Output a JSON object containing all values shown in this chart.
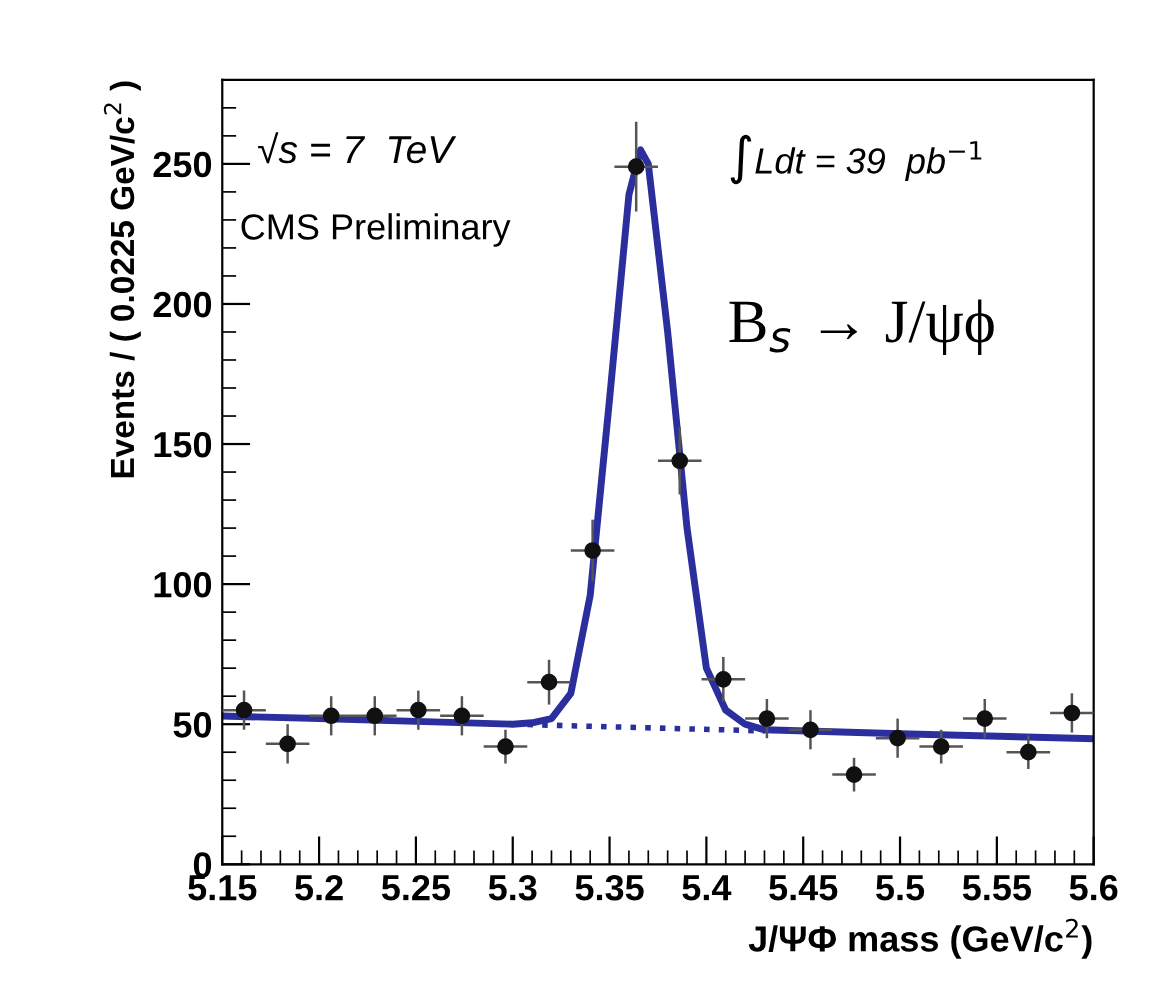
{
  "chart_data": {
    "type": "scatter",
    "xlabel": "J/ΨΦ mass (GeV/c$^{2}$)",
    "ylabel": "Events / ( 0.0225 GeV/c$^{2}$ )",
    "annotations": [
      "√s = 7  TeV",
      "CMS Preliminary",
      "∫Ldt = 39  pb$^{−1}$",
      "B$_{s}$ → J/ψϕ"
    ],
    "xlim": [
      5.15,
      5.6
    ],
    "xticks": [
      5.15,
      5.2,
      5.25,
      5.3,
      5.35,
      5.4,
      5.45,
      5.5,
      5.55,
      5.6
    ],
    "ylim": [
      0,
      280
    ],
    "yticks": [
      0,
      50,
      100,
      150,
      200,
      250
    ],
    "grid": false,
    "legend": false,
    "series": [
      {
        "color": "#111111",
        "marker": "circle",
        "x": [
          5.16125,
          5.18375,
          5.20625,
          5.22875,
          5.25125,
          5.27375,
          5.29625,
          5.31875,
          5.34125,
          5.36375,
          5.38625,
          5.40875,
          5.43125,
          5.45375,
          5.47625,
          5.49875,
          5.52125,
          5.54375,
          5.56625,
          5.58875
        ],
        "values": [
          55,
          43,
          53,
          53,
          55,
          53,
          42,
          65,
          112,
          249,
          144,
          66,
          52,
          48,
          32,
          45,
          42,
          52,
          40,
          54
        ],
        "errors": [
          7,
          7,
          7,
          7,
          7,
          7,
          6,
          8,
          11,
          16,
          12,
          8,
          7,
          7,
          6,
          7,
          6,
          7,
          6,
          7
        ],
        "xerrors": [
          0.01125,
          0.01125,
          0.01125,
          0.01125,
          0.01125,
          0.01125,
          0.01125,
          0.01125,
          0.01125,
          0.01125,
          0.01125,
          0.01125,
          0.01125,
          0.01125,
          0.01125,
          0.01125,
          0.01125,
          0.01125,
          0.01125,
          0.01125
        ]
      },
      {
        "type": "line",
        "color": "#2b2f9e",
        "line_style": "solid",
        "marker": "none",
        "x": [
          5.15,
          5.2,
          5.25,
          5.3,
          5.31,
          5.32,
          5.33,
          5.34,
          5.35,
          5.36,
          5.366,
          5.37,
          5.38,
          5.39,
          5.4,
          5.41,
          5.42,
          5.43,
          5.5,
          5.6
        ],
        "values": [
          52.9,
          52,
          51,
          50,
          50.5,
          52,
          61,
          96,
          166,
          239,
          255,
          250,
          190,
          120,
          70,
          55,
          50,
          48,
          46.6,
          44.8
        ]
      },
      {
        "type": "line",
        "color": "#2b2f9e",
        "line_style": "dotted",
        "marker": "none",
        "x": [
          5.3,
          5.43
        ],
        "values": [
          50,
          47.6
        ]
      }
    ]
  }
}
